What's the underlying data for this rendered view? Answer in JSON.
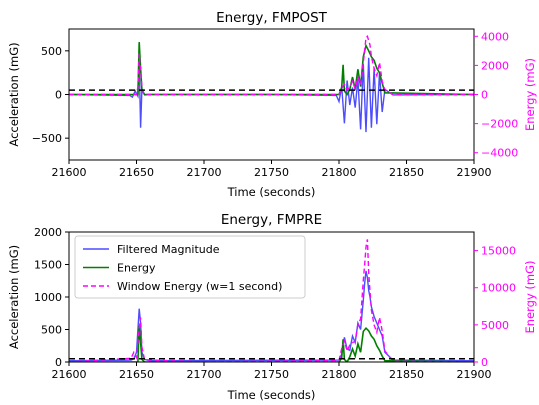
{
  "colors": {
    "filtered_magnitude": "#4d4dff",
    "energy": "#008000",
    "window_energy": "#ff00ff",
    "threshold": "#000000",
    "right_axis": "#ff00ff"
  },
  "chart_data": [
    {
      "type": "line",
      "title": "Energy, FMPOST",
      "xlabel": "Time (seconds)",
      "ylabel": "Acceleration (mG)",
      "y2label": "Energy (mG)",
      "xlim": [
        21600,
        21900
      ],
      "ylim": [
        -750,
        750
      ],
      "y2lim": [
        -4500,
        4500
      ],
      "xticks": [
        21600,
        21650,
        21700,
        21750,
        21800,
        21850,
        21900
      ],
      "yticks": [
        -500,
        0,
        500
      ],
      "y2ticks": [
        -4000,
        -2000,
        0,
        2000,
        4000
      ],
      "threshold_y": 50,
      "grid": false,
      "series": [
        {
          "name": "Filtered Magnitude",
          "style": "solid",
          "x": [
            21600,
            21645,
            21647,
            21649,
            21651,
            21652,
            21653,
            21654,
            21656,
            21660,
            21700,
            21750,
            21798,
            21800,
            21802,
            21804,
            21806,
            21808,
            21810,
            21812,
            21814,
            21816,
            21818,
            21820,
            21822,
            21824,
            21826,
            21828,
            21830,
            21832,
            21834,
            21840,
            21900
          ],
          "y": [
            0,
            -10,
            -30,
            40,
            -20,
            380,
            -380,
            60,
            -5,
            0,
            0,
            0,
            -10,
            -80,
            90,
            -330,
            160,
            -120,
            80,
            -150,
            180,
            -400,
            350,
            -430,
            420,
            -380,
            300,
            -340,
            250,
            -200,
            60,
            -5,
            0
          ]
        },
        {
          "name": "Energy",
          "style": "solid",
          "x": [
            21600,
            21651,
            21652,
            21653,
            21654,
            21656,
            21800,
            21802,
            21803,
            21804,
            21806,
            21808,
            21810,
            21812,
            21814,
            21816,
            21818,
            21820,
            21822,
            21824,
            21826,
            21828,
            21830,
            21832,
            21834,
            21900
          ],
          "y": [
            0,
            0,
            600,
            300,
            50,
            0,
            0,
            80,
            340,
            40,
            0,
            60,
            200,
            60,
            290,
            90,
            430,
            560,
            500,
            430,
            390,
            300,
            250,
            130,
            20,
            0
          ]
        },
        {
          "name": "Window Energy (w=1 second)",
          "style": "dashed",
          "x": [
            21600,
            21650,
            21651,
            21652,
            21653,
            21654,
            21655,
            21656,
            21700,
            21800,
            21802,
            21804,
            21806,
            21808,
            21810,
            21812,
            21814,
            21816,
            21818,
            21819,
            21820,
            21821,
            21822,
            21823,
            21824,
            21826,
            21828,
            21830,
            21832,
            21834,
            21840,
            21900
          ],
          "y": [
            0,
            0,
            500,
            2800,
            1700,
            600,
            100,
            0,
            0,
            0,
            400,
            700,
            300,
            500,
            900,
            400,
            1200,
            700,
            2200,
            3000,
            3900,
            4000,
            3700,
            3400,
            2600,
            1800,
            1300,
            2200,
            900,
            300,
            0,
            0
          ]
        }
      ]
    },
    {
      "type": "line",
      "title": "Energy, FMPRE",
      "xlabel": "Time (seconds)",
      "ylabel": "Acceleration (mG)",
      "y2label": "Energy (mG)",
      "xlim": [
        21600,
        21900
      ],
      "ylim": [
        0,
        2000
      ],
      "y2lim": [
        0,
        17500
      ],
      "xticks": [
        21600,
        21650,
        21700,
        21750,
        21800,
        21850,
        21900
      ],
      "yticks": [
        0,
        500,
        1000,
        1500,
        2000
      ],
      "y2ticks": [
        0,
        5000,
        10000,
        15000
      ],
      "threshold_y": 50,
      "grid": false,
      "legend_position": "upper-left",
      "series": [
        {
          "name": "Filtered Magnitude",
          "style": "solid",
          "x": [
            21600,
            21646,
            21648,
            21650,
            21652,
            21653,
            21654,
            21656,
            21660,
            21800,
            21802,
            21804,
            21806,
            21808,
            21810,
            21812,
            21814,
            21816,
            21818,
            21819,
            21820,
            21821,
            21822,
            21823,
            21824,
            21826,
            21828,
            21830,
            21832,
            21834,
            21840,
            21900
          ],
          "y": [
            20,
            30,
            50,
            150,
            820,
            600,
            150,
            40,
            20,
            30,
            120,
            380,
            200,
            180,
            400,
            300,
            600,
            500,
            950,
            1200,
            1400,
            1300,
            1100,
            1000,
            850,
            700,
            600,
            500,
            400,
            150,
            30,
            20
          ]
        },
        {
          "name": "Energy",
          "style": "solid",
          "x": [
            21600,
            21651,
            21652,
            21653,
            21654,
            21656,
            21800,
            21802,
            21803,
            21804,
            21806,
            21808,
            21810,
            21812,
            21814,
            21816,
            21818,
            21820,
            21822,
            21824,
            21826,
            21828,
            21830,
            21832,
            21834,
            21900
          ],
          "y": [
            0,
            0,
            560,
            300,
            40,
            0,
            0,
            60,
            350,
            40,
            0,
            80,
            200,
            90,
            280,
            150,
            470,
            520,
            480,
            400,
            350,
            250,
            180,
            90,
            20,
            0
          ]
        },
        {
          "name": "Window Energy (w=1 second)",
          "style": "dashed",
          "x": [
            21600,
            21646,
            21648,
            21650,
            21652,
            21653,
            21654,
            21656,
            21700,
            21800,
            21802,
            21804,
            21806,
            21808,
            21810,
            21812,
            21814,
            21816,
            21818,
            21819,
            21820,
            21821,
            21822,
            21823,
            21824,
            21826,
            21828,
            21830,
            21832,
            21834,
            21840,
            21900
          ],
          "y": [
            0,
            500,
            1300,
            600,
            4500,
            6000,
            2000,
            300,
            0,
            200,
            1800,
            2800,
            1500,
            2300,
            2600,
            2800,
            5000,
            5800,
            11000,
            13000,
            15500,
            16500,
            12000,
            9500,
            7000,
            5000,
            4000,
            6000,
            4200,
            1500,
            100,
            0
          ]
        }
      ]
    }
  ]
}
